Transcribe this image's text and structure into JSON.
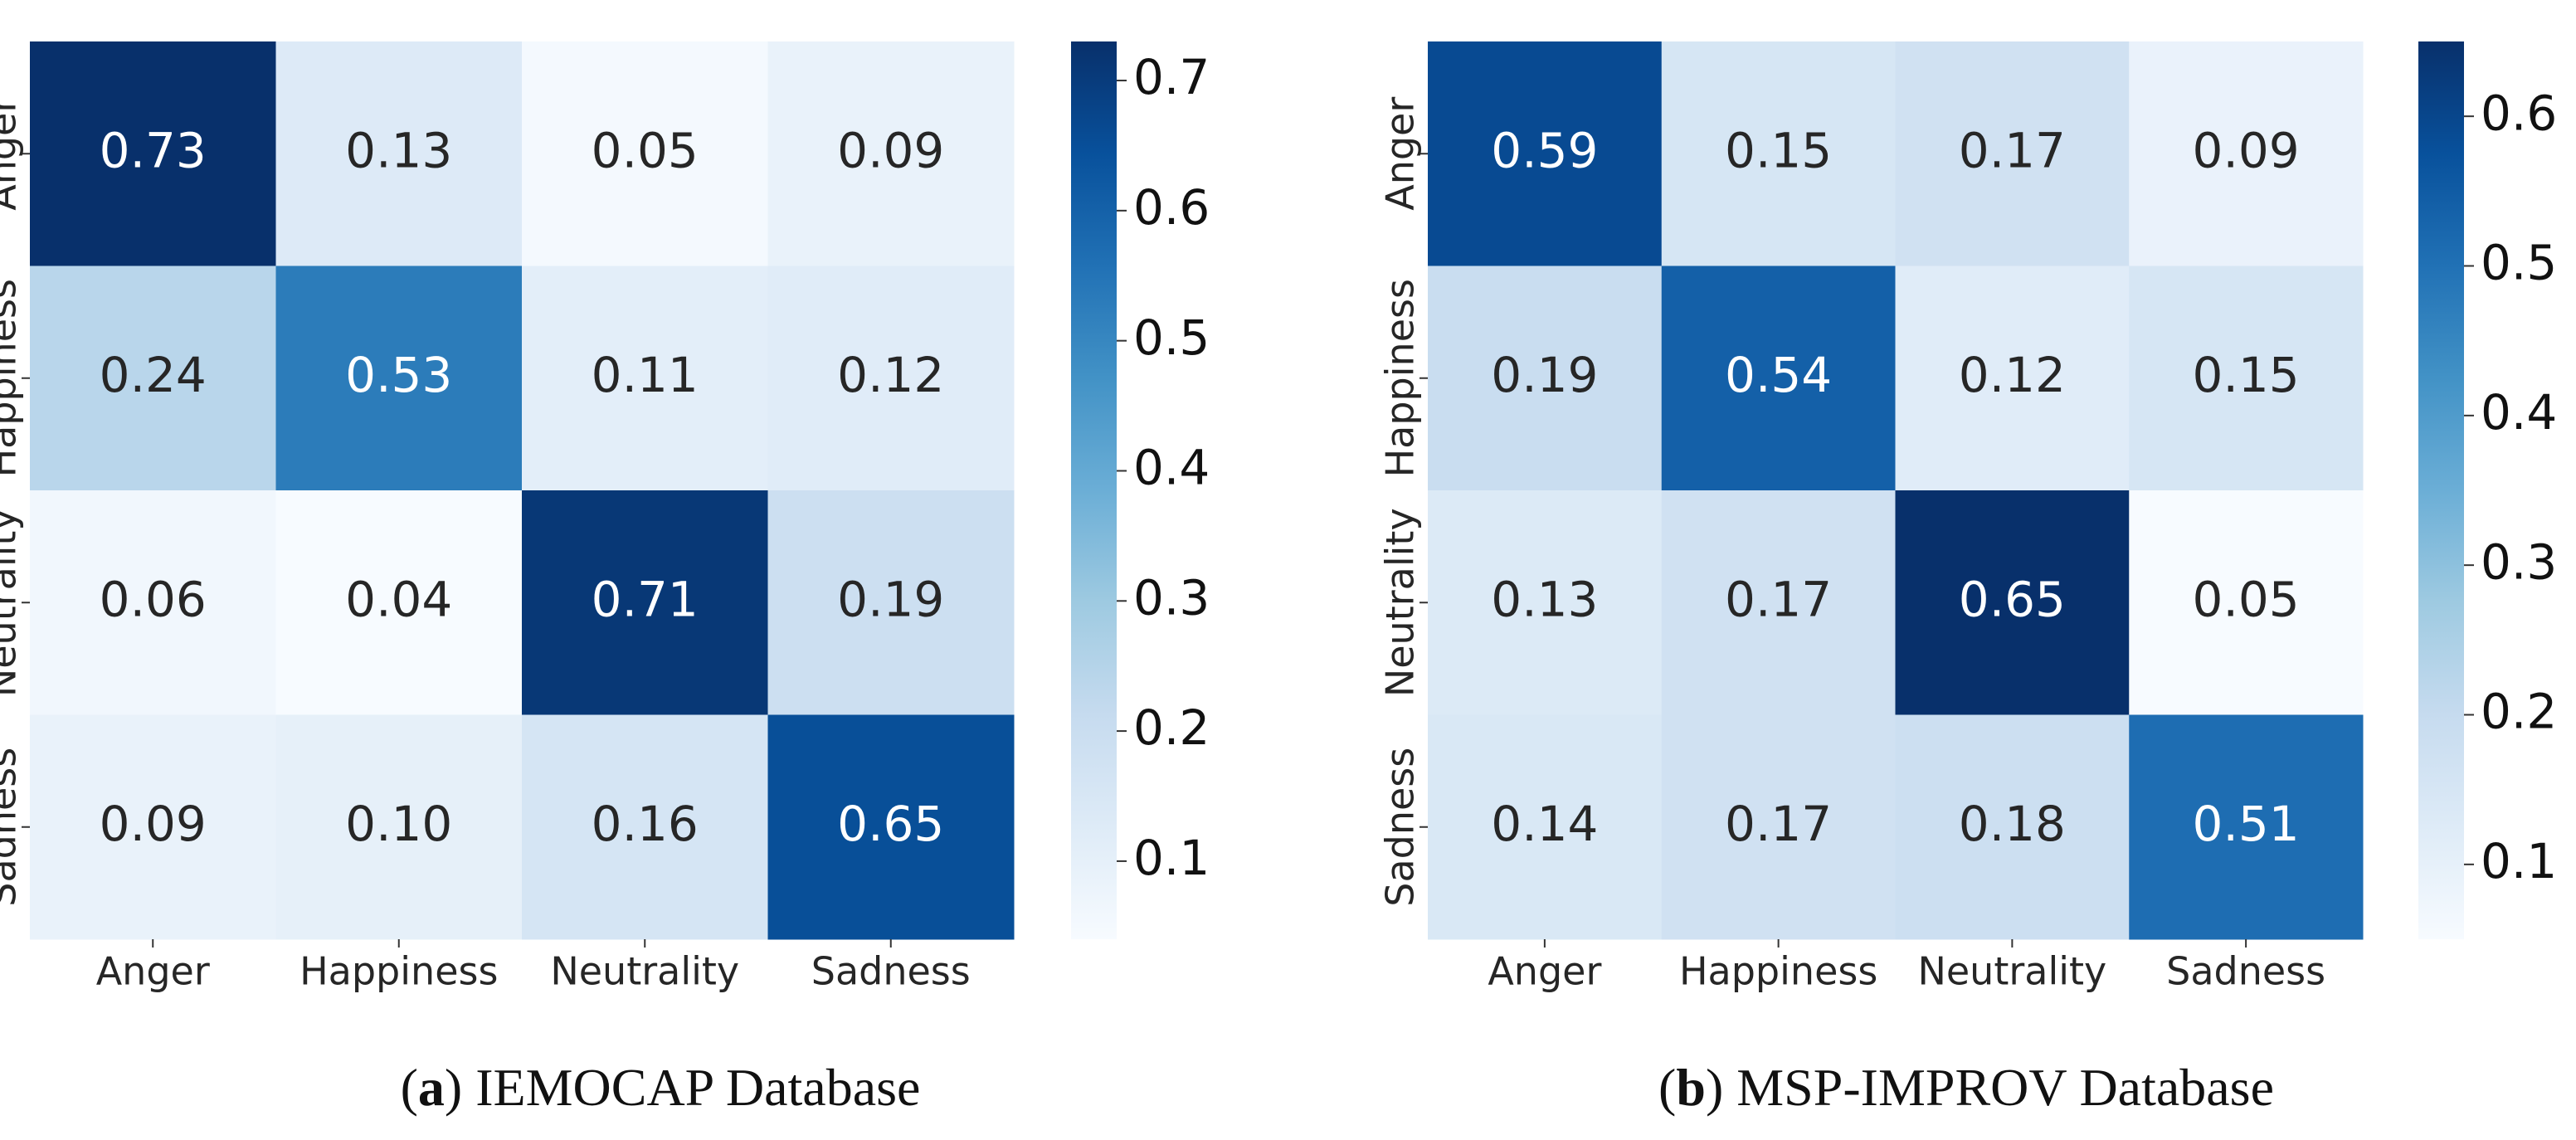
{
  "chart_data": [
    {
      "type": "heatmap",
      "caption": [
        "(",
        "a",
        ") IEMOCAP Database"
      ],
      "x": [
        "Anger",
        "Happiness",
        "Neutrality",
        "Sadness"
      ],
      "y": [
        "Anger",
        "Happiness",
        "Neutrality",
        "Sadness"
      ],
      "values": [
        [
          0.73,
          0.13,
          0.05,
          0.09
        ],
        [
          0.24,
          0.53,
          0.11,
          0.12
        ],
        [
          0.06,
          0.04,
          0.71,
          0.19
        ],
        [
          0.09,
          0.1,
          0.16,
          0.65
        ]
      ],
      "value_labels": [
        [
          "0.73",
          "0.13",
          "0.05",
          "0.09"
        ],
        [
          "0.24",
          "0.53",
          "0.11",
          "0.12"
        ],
        [
          "0.06",
          "0.04",
          "0.71",
          "0.19"
        ],
        [
          "0.09",
          "0.10",
          "0.16",
          "0.65"
        ]
      ],
      "colormap": "Blues",
      "zlim": [
        0.04,
        0.73
      ],
      "zticks": [
        0.1,
        0.2,
        0.3,
        0.4,
        0.5,
        0.6,
        0.7
      ]
    },
    {
      "type": "heatmap",
      "caption": [
        "(",
        "b",
        ") MSP-IMPROV Database"
      ],
      "x": [
        "Anger",
        "Happiness",
        "Neutrality",
        "Sadness"
      ],
      "y": [
        "Anger",
        "Happiness",
        "Neutrality",
        "Sadness"
      ],
      "values": [
        [
          0.59,
          0.15,
          0.17,
          0.09
        ],
        [
          0.19,
          0.54,
          0.12,
          0.15
        ],
        [
          0.13,
          0.17,
          0.65,
          0.05
        ],
        [
          0.14,
          0.17,
          0.18,
          0.51
        ]
      ],
      "value_labels": [
        [
          "0.59",
          "0.15",
          "0.17",
          "0.09"
        ],
        [
          "0.19",
          "0.54",
          "0.12",
          "0.15"
        ],
        [
          "0.13",
          "0.17",
          "0.65",
          "0.05"
        ],
        [
          "0.14",
          "0.17",
          "0.18",
          "0.51"
        ]
      ],
      "colormap": "Blues",
      "zlim": [
        0.05,
        0.65
      ],
      "zticks": [
        0.1,
        0.2,
        0.3,
        0.4,
        0.5,
        0.6
      ]
    }
  ]
}
